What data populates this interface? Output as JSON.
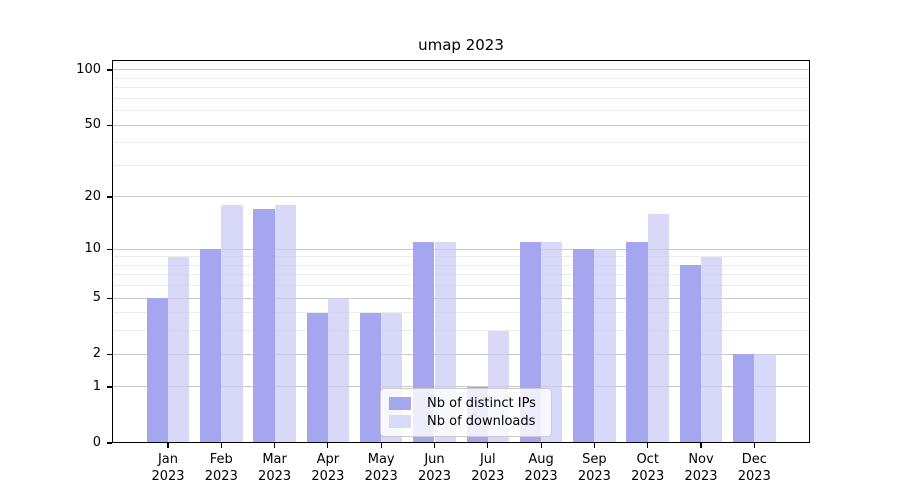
{
  "title": "umap 2023",
  "chart_data": {
    "type": "bar",
    "title": "umap 2023",
    "categories": [
      "Jan",
      "Feb",
      "Mar",
      "Apr",
      "May",
      "Jun",
      "Jul",
      "Aug",
      "Sep",
      "Oct",
      "Nov",
      "Dec"
    ],
    "x_tick_second_line": "2023",
    "series": [
      {
        "name": "Nb of distinct IPs",
        "color": "#a5a5f0",
        "values": [
          5,
          10,
          17,
          4,
          4,
          11,
          1,
          11,
          10,
          11,
          8,
          2
        ]
      },
      {
        "name": "Nb of downloads",
        "color": "rgba(201,201,245,0.72)",
        "legend_color": "#d9d9f8",
        "values": [
          9,
          18,
          18,
          5,
          4,
          11,
          3,
          11,
          10,
          16,
          9,
          2
        ]
      }
    ],
    "xlabel": "",
    "ylabel": "",
    "yscale": "log10(1+x)",
    "ylim": [
      0,
      113.3
    ],
    "yticks_major": [
      0,
      1,
      2,
      5,
      10,
      20,
      50,
      100
    ],
    "yticks_minor": [
      3,
      4,
      6,
      7,
      8,
      9,
      30,
      40,
      60,
      70,
      80,
      90
    ],
    "grid": "horizontal",
    "legend_position": "lower center",
    "colors": {
      "major_grid": "#c9c9c9",
      "minor_grid": "#ececec",
      "spine": "#000000",
      "background": "#ffffff"
    }
  }
}
